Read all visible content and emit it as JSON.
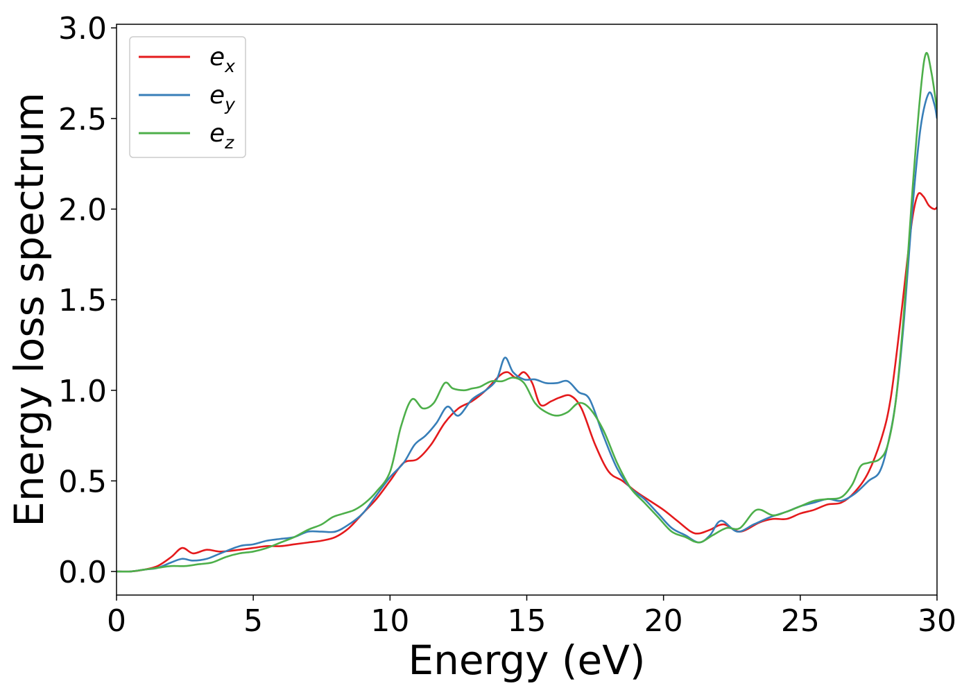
{
  "chart_data": {
    "type": "line",
    "title": "",
    "xlabel": "Energy (eV)",
    "ylabel": "Energy loss spectrum",
    "xlim": [
      0,
      30
    ],
    "ylim": [
      -0.13,
      3.02
    ],
    "xticks": [
      "0",
      "5",
      "10",
      "15",
      "20",
      "25",
      "30"
    ],
    "yticks": [
      "0.0",
      "0.5",
      "1.0",
      "1.5",
      "2.0",
      "2.5",
      "3.0"
    ],
    "grid": false,
    "legend_position": "top-left",
    "series": [
      {
        "name": "e_x",
        "legend_base": "e",
        "legend_sub": "x",
        "color": "#e41a1c",
        "x": [
          0,
          0.5,
          1.0,
          1.5,
          2.0,
          2.4,
          2.8,
          3.3,
          3.8,
          4.5,
          5.0,
          5.5,
          6.0,
          6.5,
          7.0,
          7.5,
          8.0,
          8.5,
          9.0,
          9.5,
          10.0,
          10.5,
          11.0,
          11.5,
          12.0,
          12.5,
          13.0,
          13.5,
          14.0,
          14.3,
          14.6,
          14.9,
          15.2,
          15.5,
          15.9,
          16.2,
          16.6,
          17.0,
          17.5,
          18.0,
          18.5,
          19.0,
          19.5,
          20.0,
          20.5,
          21.0,
          21.3,
          21.7,
          22.2,
          22.8,
          23.5,
          24.0,
          24.5,
          25.0,
          25.5,
          26.0,
          26.5,
          27.0,
          27.5,
          28.0,
          28.3,
          28.6,
          28.9,
          29.1,
          29.3,
          29.5,
          29.7,
          29.9,
          30.0
        ],
        "y": [
          0.0,
          0.0,
          0.01,
          0.03,
          0.08,
          0.13,
          0.1,
          0.12,
          0.11,
          0.12,
          0.13,
          0.14,
          0.14,
          0.15,
          0.16,
          0.17,
          0.19,
          0.24,
          0.32,
          0.4,
          0.5,
          0.6,
          0.62,
          0.7,
          0.82,
          0.9,
          0.94,
          1.0,
          1.08,
          1.1,
          1.07,
          1.1,
          1.04,
          0.92,
          0.94,
          0.96,
          0.97,
          0.9,
          0.7,
          0.55,
          0.5,
          0.44,
          0.39,
          0.34,
          0.28,
          0.22,
          0.21,
          0.23,
          0.26,
          0.22,
          0.27,
          0.29,
          0.29,
          0.32,
          0.34,
          0.37,
          0.38,
          0.44,
          0.55,
          0.75,
          0.95,
          1.3,
          1.7,
          1.95,
          2.08,
          2.07,
          2.02,
          2.0,
          2.01
        ]
      },
      {
        "name": "e_y",
        "legend_base": "e",
        "legend_sub": "y",
        "color": "#377eb8",
        "x": [
          0,
          0.5,
          1.0,
          1.5,
          2.0,
          2.4,
          2.8,
          3.3,
          3.8,
          4.5,
          5.0,
          5.5,
          6.0,
          6.5,
          7.0,
          7.5,
          8.0,
          8.5,
          9.0,
          9.5,
          10.0,
          10.5,
          10.9,
          11.3,
          11.7,
          12.1,
          12.5,
          13.0,
          13.5,
          13.9,
          14.2,
          14.5,
          14.9,
          15.3,
          15.7,
          16.1,
          16.5,
          16.9,
          17.3,
          17.8,
          18.3,
          18.8,
          19.3,
          19.8,
          20.3,
          20.8,
          21.3,
          21.7,
          22.1,
          22.7,
          23.3,
          23.9,
          24.5,
          25.0,
          25.5,
          26.0,
          26.5,
          27.0,
          27.5,
          27.9,
          28.2,
          28.5,
          28.8,
          29.1,
          29.4,
          29.7,
          29.9,
          30.0
        ],
        "y": [
          0.0,
          0.0,
          0.01,
          0.02,
          0.05,
          0.07,
          0.06,
          0.07,
          0.1,
          0.14,
          0.15,
          0.17,
          0.18,
          0.19,
          0.22,
          0.22,
          0.22,
          0.26,
          0.32,
          0.42,
          0.52,
          0.6,
          0.7,
          0.75,
          0.82,
          0.91,
          0.86,
          0.95,
          1.0,
          1.06,
          1.18,
          1.1,
          1.06,
          1.06,
          1.04,
          1.04,
          1.05,
          0.99,
          0.95,
          0.75,
          0.57,
          0.46,
          0.4,
          0.32,
          0.24,
          0.2,
          0.16,
          0.2,
          0.28,
          0.22,
          0.26,
          0.3,
          0.33,
          0.36,
          0.38,
          0.4,
          0.39,
          0.43,
          0.5,
          0.55,
          0.7,
          0.95,
          1.4,
          2.0,
          2.45,
          2.64,
          2.58,
          2.5
        ]
      },
      {
        "name": "e_z",
        "legend_base": "e",
        "legend_sub": "z",
        "color": "#4daf4a",
        "x": [
          0,
          0.5,
          1.0,
          1.5,
          2.0,
          2.5,
          3.0,
          3.5,
          4.0,
          4.5,
          5.0,
          5.5,
          6.0,
          6.5,
          7.0,
          7.5,
          7.9,
          8.3,
          8.7,
          9.1,
          9.5,
          10.0,
          10.4,
          10.8,
          11.2,
          11.6,
          12.0,
          12.3,
          12.7,
          13.0,
          13.3,
          13.7,
          14.1,
          14.5,
          14.9,
          15.3,
          15.7,
          16.1,
          16.5,
          16.9,
          17.3,
          17.8,
          18.3,
          18.8,
          19.3,
          19.8,
          20.3,
          20.8,
          21.3,
          21.8,
          22.3,
          22.8,
          23.4,
          24.0,
          24.5,
          25.0,
          25.5,
          26.0,
          26.5,
          26.9,
          27.2,
          27.5,
          27.9,
          28.2,
          28.5,
          28.8,
          29.1,
          29.4,
          29.6,
          29.8,
          30.0
        ],
        "y": [
          0.0,
          0.0,
          0.01,
          0.02,
          0.03,
          0.03,
          0.04,
          0.05,
          0.08,
          0.1,
          0.11,
          0.13,
          0.16,
          0.19,
          0.23,
          0.26,
          0.3,
          0.32,
          0.34,
          0.38,
          0.44,
          0.55,
          0.8,
          0.95,
          0.9,
          0.93,
          1.04,
          1.01,
          1.0,
          1.01,
          1.02,
          1.05,
          1.05,
          1.07,
          1.04,
          0.93,
          0.88,
          0.86,
          0.88,
          0.93,
          0.9,
          0.78,
          0.6,
          0.46,
          0.38,
          0.3,
          0.22,
          0.19,
          0.16,
          0.2,
          0.24,
          0.24,
          0.34,
          0.31,
          0.33,
          0.36,
          0.39,
          0.4,
          0.41,
          0.48,
          0.58,
          0.6,
          0.62,
          0.7,
          0.95,
          1.45,
          2.1,
          2.65,
          2.86,
          2.75,
          2.55
        ]
      }
    ]
  }
}
